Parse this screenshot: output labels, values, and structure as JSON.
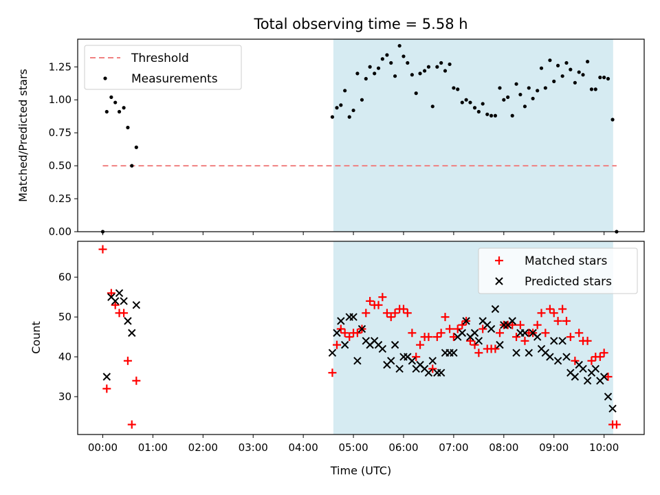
{
  "chart_data": [
    {
      "type": "scatter",
      "title": "Total observing time = 5.58 h",
      "ylabel": "Matched/Predicted stars",
      "xlabel": "",
      "ylim": [
        0,
        1.46
      ],
      "xlim": [
        -0.5,
        10.8
      ],
      "yticks": [
        "0.00",
        "0.25",
        "0.50",
        "0.75",
        "1.00",
        "1.25"
      ],
      "shaded_span": [
        4.6,
        10.18
      ],
      "shade_color": "#add8e6",
      "threshold": {
        "name": "Threshold",
        "y": 0.5,
        "x_range": [
          0,
          10.25
        ],
        "color": "#f08080"
      },
      "legend_position": "upper left",
      "series": [
        {
          "name": "Measurements",
          "color": "#000000",
          "points": [
            [
              0.0,
              0.0
            ],
            [
              0.08,
              0.91
            ],
            [
              0.17,
              1.02
            ],
            [
              0.25,
              0.98
            ],
            [
              0.33,
              0.91
            ],
            [
              0.42,
              0.94
            ],
            [
              0.5,
              0.79
            ],
            [
              0.58,
              0.5
            ],
            [
              0.67,
              0.64
            ],
            [
              4.58,
              0.87
            ],
            [
              4.67,
              0.94
            ],
            [
              4.75,
              0.96
            ],
            [
              4.83,
              1.07
            ],
            [
              4.92,
              0.87
            ],
            [
              5.0,
              0.92
            ],
            [
              5.08,
              1.2
            ],
            [
              5.17,
              1.0
            ],
            [
              5.25,
              1.16
            ],
            [
              5.33,
              1.25
            ],
            [
              5.42,
              1.2
            ],
            [
              5.5,
              1.24
            ],
            [
              5.58,
              1.31
            ],
            [
              5.67,
              1.34
            ],
            [
              5.75,
              1.28
            ],
            [
              5.83,
              1.18
            ],
            [
              5.92,
              1.41
            ],
            [
              6.0,
              1.33
            ],
            [
              6.08,
              1.28
            ],
            [
              6.17,
              1.19
            ],
            [
              6.25,
              1.05
            ],
            [
              6.33,
              1.2
            ],
            [
              6.42,
              1.22
            ],
            [
              6.5,
              1.25
            ],
            [
              6.58,
              0.95
            ],
            [
              6.67,
              1.25
            ],
            [
              6.75,
              1.28
            ],
            [
              6.83,
              1.22
            ],
            [
              6.92,
              1.27
            ],
            [
              7.0,
              1.09
            ],
            [
              7.08,
              1.08
            ],
            [
              7.17,
              0.98
            ],
            [
              7.25,
              1.0
            ],
            [
              7.33,
              0.98
            ],
            [
              7.42,
              0.94
            ],
            [
              7.5,
              0.91
            ],
            [
              7.58,
              0.97
            ],
            [
              7.67,
              0.89
            ],
            [
              7.75,
              0.88
            ],
            [
              7.83,
              0.88
            ],
            [
              7.92,
              1.09
            ],
            [
              8.0,
              1.0
            ],
            [
              8.08,
              1.02
            ],
            [
              8.17,
              0.88
            ],
            [
              8.25,
              1.12
            ],
            [
              8.33,
              1.04
            ],
            [
              8.42,
              0.95
            ],
            [
              8.5,
              1.09
            ],
            [
              8.58,
              1.01
            ],
            [
              8.67,
              1.07
            ],
            [
              8.75,
              1.24
            ],
            [
              8.83,
              1.09
            ],
            [
              8.92,
              1.3
            ],
            [
              9.0,
              1.14
            ],
            [
              9.08,
              1.26
            ],
            [
              9.17,
              1.18
            ],
            [
              9.25,
              1.28
            ],
            [
              9.33,
              1.23
            ],
            [
              9.42,
              1.13
            ],
            [
              9.5,
              1.21
            ],
            [
              9.58,
              1.19
            ],
            [
              9.67,
              1.29
            ],
            [
              9.75,
              1.08
            ],
            [
              9.83,
              1.08
            ],
            [
              9.92,
              1.17
            ],
            [
              10.0,
              1.17
            ],
            [
              10.08,
              1.16
            ],
            [
              10.17,
              0.85
            ],
            [
              10.25,
              0.0
            ]
          ]
        }
      ]
    },
    {
      "type": "scatter",
      "title": "",
      "ylabel": "Count",
      "xlabel": "Time (UTC)",
      "ylim": [
        20.5,
        69
      ],
      "xlim": [
        -0.5,
        10.8
      ],
      "yticks": [
        "30",
        "40",
        "50",
        "60"
      ],
      "xticks": [
        "00:00",
        "01:00",
        "02:00",
        "03:00",
        "04:00",
        "05:00",
        "06:00",
        "07:00",
        "08:00",
        "09:00",
        "10:00"
      ],
      "shaded_span": [
        4.6,
        10.18
      ],
      "shade_color": "#add8e6",
      "legend_position": "upper right",
      "series": [
        {
          "name": "Matched stars",
          "color": "#ff0000",
          "marker": "plus",
          "points": [
            [
              0.0,
              67
            ],
            [
              0.08,
              32
            ],
            [
              0.17,
              56
            ],
            [
              0.25,
              53
            ],
            [
              0.33,
              51
            ],
            [
              0.42,
              51
            ],
            [
              0.5,
              39
            ],
            [
              0.58,
              23
            ],
            [
              0.67,
              34
            ],
            [
              4.58,
              36
            ],
            [
              4.67,
              43
            ],
            [
              4.75,
              47
            ],
            [
              4.83,
              46
            ],
            [
              4.92,
              45
            ],
            [
              5.0,
              46
            ],
            [
              5.08,
              46
            ],
            [
              5.17,
              47
            ],
            [
              5.25,
              51
            ],
            [
              5.33,
              54
            ],
            [
              5.42,
              53
            ],
            [
              5.5,
              53
            ],
            [
              5.58,
              55
            ],
            [
              5.67,
              51
            ],
            [
              5.75,
              50
            ],
            [
              5.83,
              51
            ],
            [
              5.92,
              52
            ],
            [
              6.0,
              52
            ],
            [
              6.08,
              51
            ],
            [
              6.17,
              46
            ],
            [
              6.25,
              40
            ],
            [
              6.33,
              43
            ],
            [
              6.42,
              45
            ],
            [
              6.5,
              45
            ],
            [
              6.58,
              37
            ],
            [
              6.67,
              45
            ],
            [
              6.75,
              46
            ],
            [
              6.83,
              50
            ],
            [
              6.92,
              47
            ],
            [
              7.0,
              45
            ],
            [
              7.08,
              47
            ],
            [
              7.17,
              48
            ],
            [
              7.25,
              49
            ],
            [
              7.33,
              44
            ],
            [
              7.42,
              43
            ],
            [
              7.5,
              41
            ],
            [
              7.58,
              47
            ],
            [
              7.67,
              42
            ],
            [
              7.75,
              42
            ],
            [
              7.83,
              42
            ],
            [
              7.92,
              46
            ],
            [
              8.0,
              48
            ],
            [
              8.08,
              48
            ],
            [
              8.17,
              48
            ],
            [
              8.25,
              45
            ],
            [
              8.33,
              48
            ],
            [
              8.42,
              44
            ],
            [
              8.5,
              46
            ],
            [
              8.58,
              46
            ],
            [
              8.67,
              48
            ],
            [
              8.75,
              51
            ],
            [
              8.83,
              46
            ],
            [
              8.92,
              52
            ],
            [
              9.0,
              51
            ],
            [
              9.08,
              49
            ],
            [
              9.17,
              52
            ],
            [
              9.25,
              49
            ],
            [
              9.33,
              45
            ],
            [
              9.42,
              39
            ],
            [
              9.5,
              46
            ],
            [
              9.58,
              44
            ],
            [
              9.67,
              44
            ],
            [
              9.75,
              39
            ],
            [
              9.83,
              40
            ],
            [
              9.92,
              40
            ],
            [
              10.0,
              41
            ],
            [
              10.08,
              35
            ],
            [
              10.17,
              23
            ],
            [
              10.25,
              23
            ]
          ]
        },
        {
          "name": "Predicted stars",
          "color": "#000000",
          "marker": "x",
          "points": [
            [
              0.08,
              35
            ],
            [
              0.17,
              55
            ],
            [
              0.25,
              54
            ],
            [
              0.33,
              56
            ],
            [
              0.42,
              54
            ],
            [
              0.5,
              49
            ],
            [
              0.58,
              46
            ],
            [
              0.67,
              53
            ],
            [
              4.58,
              41
            ],
            [
              4.67,
              46
            ],
            [
              4.75,
              49
            ],
            [
              4.83,
              43
            ],
            [
              4.92,
              50
            ],
            [
              5.0,
              50
            ],
            [
              5.08,
              39
            ],
            [
              5.17,
              47
            ],
            [
              5.25,
              44
            ],
            [
              5.33,
              43
            ],
            [
              5.42,
              44
            ],
            [
              5.5,
              43
            ],
            [
              5.58,
              42
            ],
            [
              5.67,
              38
            ],
            [
              5.75,
              39
            ],
            [
              5.83,
              43
            ],
            [
              5.92,
              37
            ],
            [
              6.0,
              40
            ],
            [
              6.08,
              40
            ],
            [
              6.17,
              39
            ],
            [
              6.25,
              37
            ],
            [
              6.33,
              38
            ],
            [
              6.42,
              37
            ],
            [
              6.5,
              36
            ],
            [
              6.58,
              39
            ],
            [
              6.67,
              36
            ],
            [
              6.75,
              36
            ],
            [
              6.83,
              41
            ],
            [
              6.92,
              41
            ],
            [
              7.0,
              41
            ],
            [
              7.08,
              45
            ],
            [
              7.17,
              46
            ],
            [
              7.25,
              49
            ],
            [
              7.33,
              45
            ],
            [
              7.42,
              46
            ],
            [
              7.5,
              44
            ],
            [
              7.58,
              49
            ],
            [
              7.67,
              48
            ],
            [
              7.75,
              47
            ],
            [
              7.83,
              52
            ],
            [
              7.92,
              43
            ],
            [
              8.0,
              48
            ],
            [
              8.08,
              48
            ],
            [
              8.17,
              49
            ],
            [
              8.25,
              41
            ],
            [
              8.33,
              46
            ],
            [
              8.42,
              46
            ],
            [
              8.5,
              41
            ],
            [
              8.58,
              46
            ],
            [
              8.67,
              45
            ],
            [
              8.75,
              42
            ],
            [
              8.83,
              41
            ],
            [
              8.92,
              40
            ],
            [
              9.0,
              44
            ],
            [
              9.08,
              39
            ],
            [
              9.17,
              44
            ],
            [
              9.25,
              40
            ],
            [
              9.33,
              36
            ],
            [
              9.42,
              35
            ],
            [
              9.5,
              38
            ],
            [
              9.58,
              37
            ],
            [
              9.67,
              34
            ],
            [
              9.75,
              36
            ],
            [
              9.83,
              37
            ],
            [
              9.92,
              34
            ],
            [
              10.0,
              35
            ],
            [
              10.08,
              30
            ],
            [
              10.17,
              27
            ]
          ]
        }
      ]
    }
  ]
}
